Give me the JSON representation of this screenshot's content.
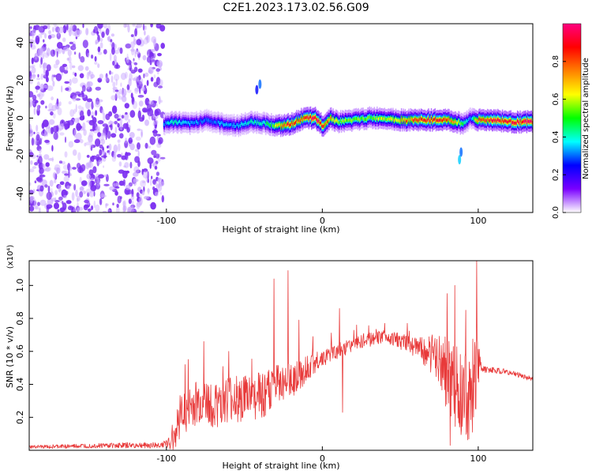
{
  "title": "C2E1.2023.173.02.56.G09",
  "colors": {
    "signal": "#e83a3a",
    "noise": "#7a2cf0",
    "axis": "#000000"
  },
  "chart_data": [
    {
      "type": "heatmap",
      "xlabel": "Height of straight line (km)",
      "ylabel": "Frequency (Hz)",
      "xlim": [
        -188,
        135
      ],
      "ylim": [
        -50,
        50
      ],
      "xticks": [
        -100,
        0,
        100
      ],
      "xtick_labels": [
        "-100",
        "0",
        "100"
      ],
      "yticks": [
        -40,
        -20,
        0,
        20,
        40
      ],
      "ytick_labels": [
        "-40",
        "-20",
        "0",
        "20",
        "40"
      ],
      "colorbar": {
        "label": "Normalized spectral amplitude",
        "range": [
          0,
          1
        ],
        "ticks": [
          0.0,
          0.2,
          0.4,
          0.6,
          0.8
        ],
        "tick_labels": [
          "0.0",
          "0.2",
          "0.4",
          "0.6",
          "0.8"
        ],
        "colormap": [
          "#ffffff",
          "#7a00ff",
          "#0000ff",
          "#00ffff",
          "#00ff00",
          "#ffff00",
          "#ff8000",
          "#ff0000",
          "#ff0080"
        ]
      },
      "noise_region_x": [
        -188,
        -102
      ],
      "ridge": {
        "x": [
          -102,
          -95,
          -85,
          -75,
          -65,
          -55,
          -45,
          -35,
          -30,
          -25,
          -20,
          -15,
          -10,
          -5,
          0,
          5,
          10,
          20,
          30,
          40,
          50,
          60,
          70,
          80,
          90,
          95,
          100,
          110,
          120,
          135
        ],
        "y": [
          -3,
          -2,
          -3,
          -1,
          -3,
          -4,
          -2,
          -3,
          -4,
          -4,
          -3,
          -1,
          0,
          0,
          -4,
          0,
          -2,
          -1,
          0,
          0,
          -1,
          -1,
          -1,
          -1,
          -3,
          0,
          -1,
          -1,
          -2,
          -2
        ],
        "amplitude": [
          0.35,
          0.4,
          0.35,
          0.3,
          0.35,
          0.35,
          0.4,
          0.45,
          0.6,
          0.8,
          0.9,
          0.75,
          0.9,
          1.0,
          0.9,
          0.7,
          0.6,
          0.55,
          0.55,
          0.6,
          0.7,
          0.85,
          0.9,
          0.85,
          0.5,
          0.3,
          0.85,
          0.9,
          0.95,
          0.95
        ]
      }
    },
    {
      "type": "line",
      "xlabel": "Height of straight line (km)",
      "ylabel": "SNR (10 * v/v)",
      "scale_label": "(x10⁴)",
      "xlim": [
        -188,
        135
      ],
      "ylim": [
        0,
        1.15
      ],
      "xticks": [
        -100,
        0,
        100
      ],
      "xtick_labels": [
        "-100",
        "0",
        "100"
      ],
      "yticks": [
        0.2,
        0.4,
        0.6,
        0.8,
        1.0
      ],
      "ytick_labels": [
        "0.2",
        "0.4",
        "0.6",
        "0.8",
        "1.0"
      ],
      "series": [
        {
          "envelope_x": [
            -188,
            -160,
            -140,
            -120,
            -105,
            -98,
            -94,
            -90,
            -80,
            -70,
            -60,
            -50,
            -40,
            -30,
            -22,
            -15,
            -10,
            -5,
            0,
            10,
            15,
            20,
            30,
            40,
            50,
            60,
            70,
            75,
            80,
            85,
            90,
            95,
            100,
            105,
            115,
            125,
            135
          ],
          "envelope_y": [
            0.02,
            0.025,
            0.03,
            0.03,
            0.03,
            0.05,
            0.12,
            0.22,
            0.28,
            0.28,
            0.3,
            0.32,
            0.33,
            0.38,
            0.42,
            0.45,
            0.5,
            0.53,
            0.56,
            0.6,
            0.62,
            0.64,
            0.67,
            0.69,
            0.66,
            0.62,
            0.58,
            0.55,
            0.45,
            0.4,
            0.35,
            0.32,
            0.5,
            0.49,
            0.48,
            0.46,
            0.43
          ],
          "noise_amp_x": [
            -188,
            -100,
            -95,
            -80,
            -40,
            -30,
            -10,
            0,
            40,
            60,
            75,
            80,
            90,
            100,
            102,
            135
          ],
          "noise_amp_y": [
            0.01,
            0.02,
            0.1,
            0.15,
            0.15,
            0.14,
            0.08,
            0.05,
            0.04,
            0.06,
            0.15,
            0.25,
            0.28,
            0.25,
            0.02,
            0.015
          ],
          "spikes": [
            {
              "x": -88,
              "y": 0.52
            },
            {
              "x": -76,
              "y": 0.66
            },
            {
              "x": -60,
              "y": 0.6
            },
            {
              "x": -31,
              "y": 1.04
            },
            {
              "x": -22,
              "y": 1.09
            },
            {
              "x": -15,
              "y": 0.79
            },
            {
              "x": 11,
              "y": 0.86
            },
            {
              "x": 13,
              "y": 0.23
            },
            {
              "x": 22,
              "y": 0.76
            },
            {
              "x": 40,
              "y": 0.77
            },
            {
              "x": 80,
              "y": 0.95
            },
            {
              "x": 85,
              "y": 1.0
            },
            {
              "x": 92,
              "y": 0.85
            },
            {
              "x": 99,
              "y": 1.15
            },
            {
              "x": 82,
              "y": 0.03
            }
          ]
        }
      ]
    }
  ]
}
